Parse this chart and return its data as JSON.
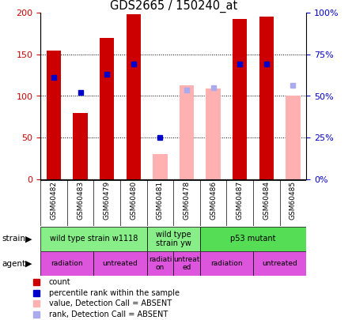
{
  "title": "GDS2665 / 150240_at",
  "samples": [
    "GSM60482",
    "GSM60483",
    "GSM60479",
    "GSM60480",
    "GSM60481",
    "GSM60478",
    "GSM60486",
    "GSM60487",
    "GSM60484",
    "GSM60485"
  ],
  "bar_values": [
    155,
    80,
    170,
    198,
    null,
    null,
    null,
    193,
    195,
    null
  ],
  "bar_absent_values": [
    null,
    null,
    null,
    null,
    30,
    113,
    109,
    null,
    null,
    100
  ],
  "rank_values": [
    122,
    null,
    126,
    138,
    null,
    null,
    null,
    138,
    138,
    null
  ],
  "rank_absent_values": [
    null,
    null,
    null,
    null,
    null,
    107,
    110,
    null,
    null,
    113
  ],
  "percentile_values": [
    null,
    104,
    null,
    null,
    50,
    null,
    null,
    null,
    null,
    null
  ],
  "bar_color": "#cc0000",
  "bar_absent_color": "#ffb0b0",
  "rank_color": "#0000cc",
  "rank_absent_color": "#aaaaee",
  "percentile_color": "#0000cc",
  "ylim": [
    0,
    200
  ],
  "y2lim": [
    0,
    100
  ],
  "yticks": [
    0,
    50,
    100,
    150,
    200
  ],
  "y2ticks": [
    0,
    25,
    50,
    75,
    100
  ],
  "y2ticklabels": [
    "0%",
    "25%",
    "50%",
    "75%",
    "100%"
  ],
  "strain_groups": [
    {
      "label": "wild type strain w1118",
      "start": 0,
      "end": 4,
      "color": "#88ee88"
    },
    {
      "label": "wild type\nstrain yw",
      "start": 4,
      "end": 6,
      "color": "#88ee88"
    },
    {
      "label": "p53 mutant",
      "start": 6,
      "end": 10,
      "color": "#55dd55"
    }
  ],
  "agent_groups": [
    {
      "label": "radiation",
      "start": 0,
      "end": 2,
      "color": "#dd55dd"
    },
    {
      "label": "untreated",
      "start": 2,
      "end": 4,
      "color": "#dd55dd"
    },
    {
      "label": "radiati\non",
      "start": 4,
      "end": 5,
      "color": "#dd55dd"
    },
    {
      "label": "untreat\ned",
      "start": 5,
      "end": 6,
      "color": "#dd55dd"
    },
    {
      "label": "radiation",
      "start": 6,
      "end": 8,
      "color": "#dd55dd"
    },
    {
      "label": "untreated",
      "start": 8,
      "end": 10,
      "color": "#dd55dd"
    }
  ],
  "legend_items": [
    {
      "label": "count",
      "color": "#cc0000"
    },
    {
      "label": "percentile rank within the sample",
      "color": "#0000cc"
    },
    {
      "label": "value, Detection Call = ABSENT",
      "color": "#ffb0b0"
    },
    {
      "label": "rank, Detection Call = ABSENT",
      "color": "#aaaaee"
    }
  ],
  "bar_width": 0.55,
  "rank_marker_size": 5,
  "bg_color": "#ffffff",
  "label_bg_color": "#cccccc",
  "tick_color_left": "#cc0000",
  "tick_color_right": "#0000cc"
}
